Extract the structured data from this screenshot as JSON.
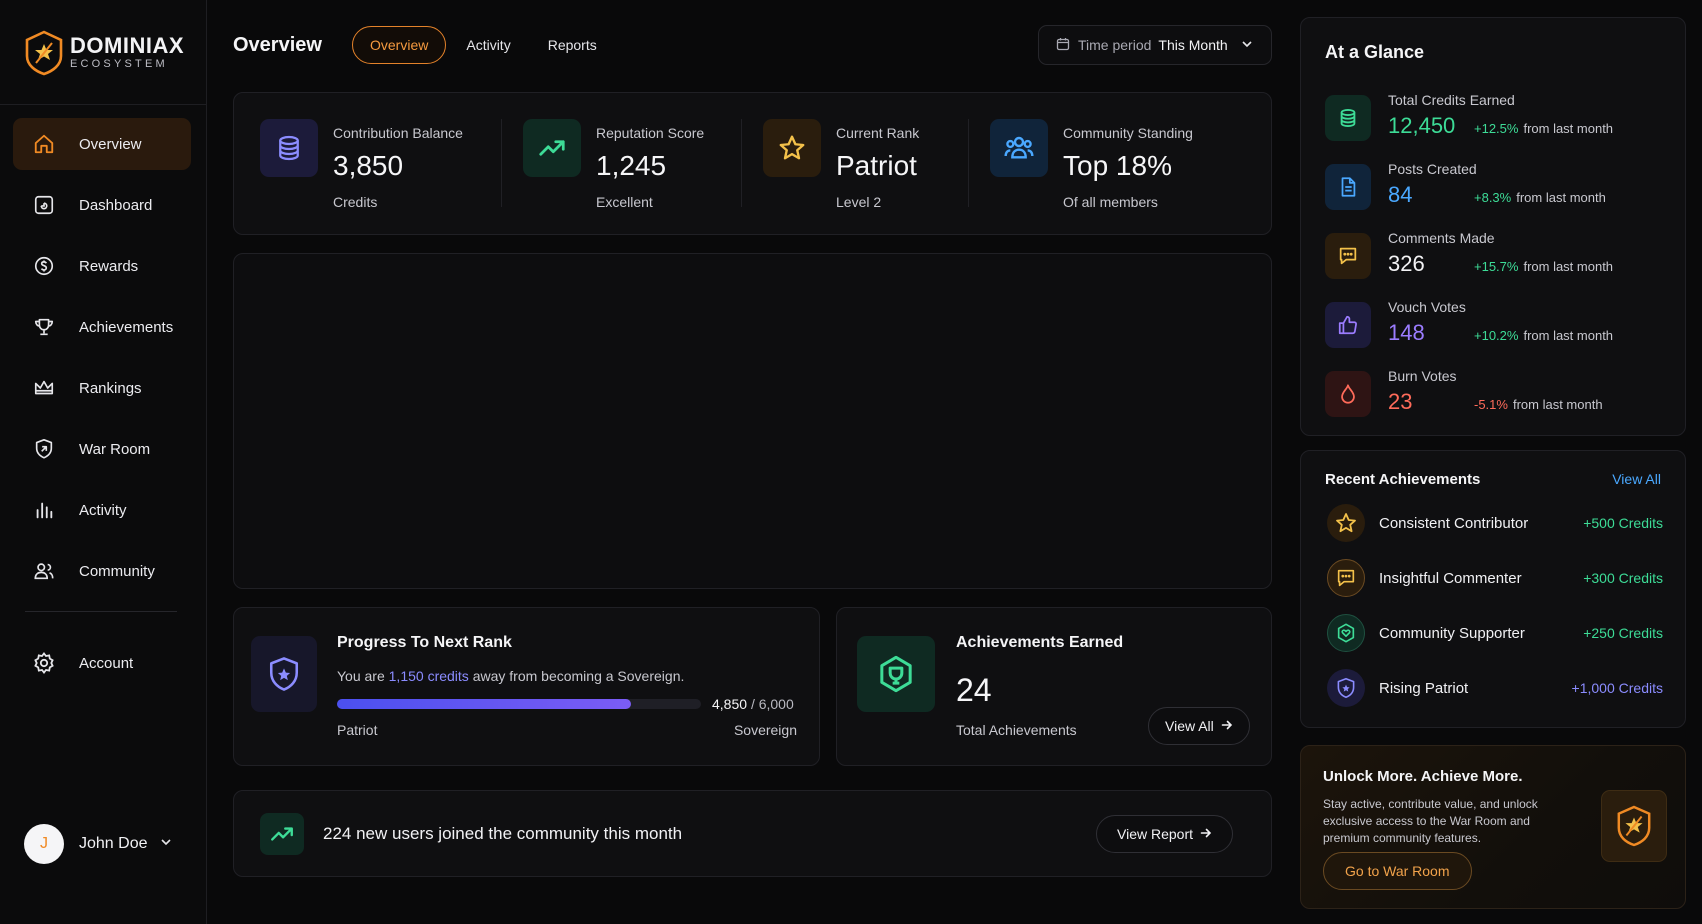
{
  "brand": {
    "name": "DOMINIAX",
    "sub": "ECOSYSTEM"
  },
  "nav": [
    {
      "label": "Overview",
      "icon": "home-icon",
      "active": true
    },
    {
      "label": "Dashboard",
      "icon": "dashboard-icon"
    },
    {
      "label": "Rewards",
      "icon": "rewards-icon"
    },
    {
      "label": "Achievements",
      "icon": "trophy-icon"
    },
    {
      "label": "Rankings",
      "icon": "crown-icon"
    },
    {
      "label": "War Room",
      "icon": "shield-icon"
    },
    {
      "label": "Activity",
      "icon": "bar-chart-icon"
    },
    {
      "label": "Community",
      "icon": "users-icon"
    },
    {
      "label": "Account",
      "icon": "gear-icon"
    }
  ],
  "user": {
    "name": "John Doe",
    "initial": "J"
  },
  "header": {
    "title": "Overview",
    "tabs": [
      "Overview",
      "Activity",
      "Reports"
    ],
    "period_label": "Time period",
    "period_value": "This Month"
  },
  "stats": [
    {
      "label": "Contribution Balance",
      "value": "3,850",
      "sub": "Credits",
      "icon": "coins-icon"
    },
    {
      "label": "Reputation Score",
      "value": "1,245",
      "sub": "Excellent",
      "icon": "trending-up-icon"
    },
    {
      "label": "Current Rank",
      "value": "Patriot",
      "sub": "Level 2",
      "icon": "star-icon"
    },
    {
      "label": "Community Standing",
      "value": "Top 18%",
      "sub": "Of all members",
      "icon": "users-icon"
    }
  ],
  "progress": {
    "title": "Progress To Next Rank",
    "desc_pre": "You are ",
    "desc_hl": "1,150 credits",
    "desc_post": " away from becoming a Sovereign.",
    "current": "4,850",
    "total": "/ 6,000",
    "fraction": 0.808,
    "from": "Patriot",
    "to": "Sovereign"
  },
  "achievements": {
    "title": "Achievements Earned",
    "count": "24",
    "sub": "Total Achievements",
    "button": "View All"
  },
  "growth": {
    "text": "224 new users joined the community this month",
    "button": "View Report"
  },
  "glance": {
    "title": "At a Glance",
    "from_text": "from last month",
    "items": [
      {
        "label": "Total Credits Earned",
        "value": "12,450",
        "delta": "+12.5%",
        "color": "#3ddc97",
        "icon": "coins-icon"
      },
      {
        "label": "Posts Created",
        "value": "84",
        "delta": "+8.3%",
        "color": "#4aa8ff",
        "icon": "document-icon"
      },
      {
        "label": "Comments Made",
        "value": "326",
        "delta": "+15.7%",
        "color": "#f3f3f5",
        "icon": "comment-icon"
      },
      {
        "label": "Vouch Votes",
        "value": "148",
        "delta": "+10.2%",
        "color": "#9b7cff",
        "icon": "thumbs-up-icon"
      },
      {
        "label": "Burn Votes",
        "value": "23",
        "delta": "-5.1%",
        "color": "#ff6b5a",
        "icon": "flame-icon"
      }
    ]
  },
  "recent": {
    "title": "Recent Achievements",
    "view_all": "View All",
    "items": [
      {
        "name": "Consistent Contributor",
        "credits": "+500 Credits",
        "color": "#3ddc97",
        "icon": "star-badge-icon"
      },
      {
        "name": "Insightful Commenter",
        "credits": "+300 Credits",
        "color": "#3ddc97",
        "icon": "comment-badge-icon"
      },
      {
        "name": "Community Supporter",
        "credits": "+250 Credits",
        "color": "#3ddc97",
        "icon": "heart-badge-icon"
      },
      {
        "name": "Rising Patriot",
        "credits": "+1,000 Credits",
        "color": "#8b8cff",
        "icon": "shield-badge-icon"
      }
    ]
  },
  "unlock": {
    "title": "Unlock More. Achieve More.",
    "text": "Stay active, contribute value, and unlock exclusive access to the War Room and premium community features.",
    "button": "Go to War Room"
  },
  "colors": {
    "accent": "#f08a24",
    "green": "#3ddc97",
    "blue": "#4aa8ff",
    "purple": "#8b8cff",
    "red": "#ff6b5a"
  }
}
